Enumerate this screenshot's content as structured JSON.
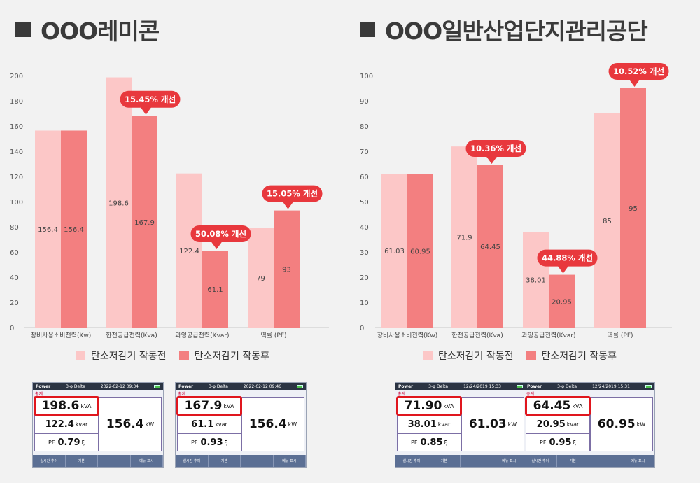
{
  "colors": {
    "before": "#fcc7c7",
    "after": "#f37f80",
    "callout": "#e8383d",
    "background": "#f2f2f2"
  },
  "legend": {
    "before": "탄소저감기 작동전",
    "after": "탄소저감기 작동후"
  },
  "left": {
    "heading": "OOO레미콘",
    "meters": [
      {
        "bar_title": "Power",
        "bar_mode": "3-φ Delta",
        "bar_time": "2022-02-12 09:34",
        "tag": "총계",
        "kva": "198.6",
        "kva_unit": "kVA",
        "kvar": "122.4",
        "kvar_unit": "kvar",
        "pf_label": "PF",
        "pf": "0.79",
        "pf_unit": "ξ",
        "kw": "156.4",
        "kw_unit": "kW",
        "foot": [
          "실시간 추이",
          "기본",
          "",
          "메뉴 표시"
        ]
      },
      {
        "bar_title": "Power",
        "bar_mode": "3-φ Delta",
        "bar_time": "2022-02-12 09:46",
        "tag": "총계",
        "kva": "167.9",
        "kva_unit": "kVA",
        "kvar": "61.1",
        "kvar_unit": "kvar",
        "pf_label": "PF",
        "pf": "0.93",
        "pf_unit": "ξ",
        "kw": "156.4",
        "kw_unit": "kW",
        "foot": [
          "실시간 추이",
          "기본",
          "",
          "메뉴 표시"
        ]
      }
    ]
  },
  "right": {
    "heading": "OOO일반산업단지관리공단",
    "meters": [
      {
        "bar_title": "Power",
        "bar_mode": "3-φ Delta",
        "bar_time": "12/24/2019 15:33",
        "tag": "총계",
        "kva": "71.90",
        "kva_unit": "kVA",
        "kvar": "38.01",
        "kvar_unit": "kvar",
        "pf_label": "PF",
        "pf": "0.85",
        "pf_unit": "ξ",
        "kw": "61.03",
        "kw_unit": "kW",
        "foot": [
          "실시간 추이",
          "기본",
          "",
          "메뉴 표시"
        ]
      },
      {
        "bar_title": "Power",
        "bar_mode": "3-φ Delta",
        "bar_time": "12/24/2019 15:31",
        "tag": "총계",
        "kva": "64.45",
        "kva_unit": "kVA",
        "kvar": "20.95",
        "kvar_unit": "kvar",
        "pf_label": "PF",
        "pf": "0.95",
        "pf_unit": "ξ",
        "kw": "60.95",
        "kw_unit": "kW",
        "foot": [
          "실시간 추이",
          "기본",
          "",
          "메뉴 표시"
        ]
      }
    ]
  },
  "chart_data": [
    {
      "type": "bar",
      "title": "OOO레미콘",
      "categories": [
        "장비사용소비전력(Kw)",
        "한전공급전력(Kva)",
        "과잉공급전력(Kvar)",
        "역률 (PF)"
      ],
      "series": [
        {
          "name": "탄소저감기 작동전",
          "values": [
            156.4,
            198.6,
            122.4,
            79
          ],
          "labels": [
            "156.4",
            "198.6",
            "122.4",
            "79"
          ]
        },
        {
          "name": "탄소저감기 작동후",
          "values": [
            156.4,
            167.9,
            61.1,
            93
          ],
          "labels": [
            "156.4",
            "167.9",
            "61.1",
            "93"
          ]
        }
      ],
      "ylim": [
        0,
        200
      ],
      "yticks": [
        0,
        20,
        40,
        60,
        80,
        100,
        120,
        140,
        160,
        180,
        200
      ],
      "grid": false,
      "legend": "bottom",
      "annotations": [
        {
          "category": 1,
          "text": "15.45% 개선"
        },
        {
          "category": 2,
          "text": "50.08% 개선"
        },
        {
          "category": 3,
          "text": "15.05% 개선"
        }
      ]
    },
    {
      "type": "bar",
      "title": "OOO일반산업단지관리공단",
      "categories": [
        "장비사용소비전력(Kw)",
        "한전공급전력(Kva)",
        "과잉공급전력(Kvar)",
        "역률 (PF)"
      ],
      "series": [
        {
          "name": "탄소저감기 작동전",
          "values": [
            61.03,
            71.9,
            38.01,
            85
          ],
          "labels": [
            "61.03",
            "71.9",
            "38.01",
            "85"
          ]
        },
        {
          "name": "탄소저감기 작동후",
          "values": [
            60.95,
            64.45,
            20.95,
            95
          ],
          "labels": [
            "60.95",
            "64.45",
            "20.95",
            "95"
          ]
        }
      ],
      "ylim": [
        0,
        100
      ],
      "yticks": [
        0,
        10,
        20,
        30,
        40,
        50,
        60,
        70,
        80,
        90,
        100
      ],
      "grid": false,
      "legend": "bottom",
      "annotations": [
        {
          "category": 1,
          "text": "10.36% 개선"
        },
        {
          "category": 2,
          "text": "44.88% 개선"
        },
        {
          "category": 3,
          "text": "10.52% 개선"
        }
      ]
    }
  ]
}
